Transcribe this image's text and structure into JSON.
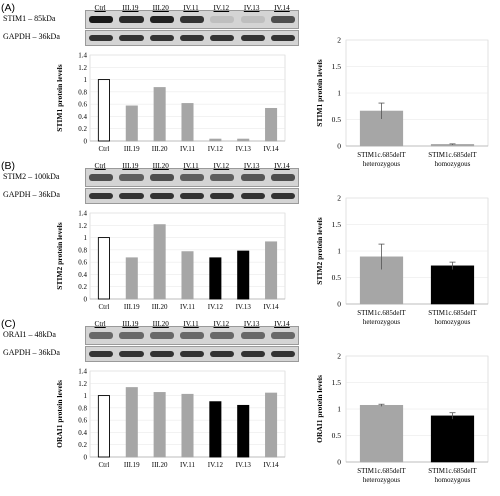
{
  "lanes": [
    "Ctrl",
    "III.19",
    "III.20",
    "IV.11",
    "IV.12",
    "IV.13",
    "IV.14"
  ],
  "group_labels": [
    "STIM1c.685delT\nheterozygous",
    "STIM1c.685delT\nhomozygous"
  ],
  "y_ticks_left": [
    "0",
    "0.2",
    "0.4",
    "0.6",
    "0.8",
    "1",
    "1.2",
    "1.4"
  ],
  "y_ticks_right": [
    "0",
    "0.5",
    "1",
    "1.5",
    "2"
  ],
  "loading_label": "GAPDH – 36kDa",
  "colors": {
    "control": "#ffffff",
    "heterozygous": "#a6a6a6",
    "homozygous": "#000000",
    "stim1_homozygous": "#a6a6a6"
  },
  "panels": [
    {
      "label": "(A)",
      "blot_label": "STIM1 – 85kDa",
      "ylabel": "STIM1 protein levels",
      "band_intensity": [
        1.0,
        0.9,
        0.95,
        0.85,
        0.05,
        0.05,
        0.7
      ]
    },
    {
      "label": "(B)",
      "blot_label": "STIM2 – 100kDa",
      "ylabel": "STIM2 protein levels",
      "band_intensity": [
        0.7,
        0.6,
        0.7,
        0.6,
        0.6,
        0.65,
        0.7
      ]
    },
    {
      "label": "(C)",
      "blot_label": "ORAI1 – 48kDa",
      "ylabel": "ORAI1 protein levels",
      "band_intensity": [
        0.55,
        0.55,
        0.55,
        0.55,
        0.55,
        0.55,
        0.55
      ]
    }
  ],
  "chart_data": [
    {
      "type": "bar",
      "panel": "(A)",
      "ylabel": "STIM1 protein levels",
      "ylim": [
        0,
        1.4
      ],
      "categories": [
        "Ctrl",
        "III.19",
        "III.20",
        "IV.11",
        "IV.12",
        "IV.13",
        "IV.14"
      ],
      "values": [
        1.0,
        0.57,
        0.87,
        0.61,
        0.03,
        0.03,
        0.53
      ],
      "colors": [
        "#ffffff",
        "#a6a6a6",
        "#a6a6a6",
        "#a6a6a6",
        "#a6a6a6",
        "#a6a6a6",
        "#a6a6a6"
      ]
    },
    {
      "type": "bar",
      "panel": "(A)",
      "ylabel": "STIM1 protein levels",
      "ylim": [
        0,
        2
      ],
      "categories": [
        "STIM1c.685delT\nheterozygous",
        "STIM1c.685delT\nhomozygous"
      ],
      "values": [
        0.66,
        0.03
      ],
      "errors": [
        0.15,
        0.01
      ],
      "colors": [
        "#a6a6a6",
        "#a6a6a6"
      ]
    },
    {
      "type": "bar",
      "panel": "(B)",
      "ylabel": "STIM2 protein levels",
      "ylim": [
        0,
        1.4
      ],
      "categories": [
        "Ctrl",
        "III.19",
        "III.20",
        "IV.11",
        "IV.12",
        "IV.13",
        "IV.14"
      ],
      "values": [
        1.0,
        0.67,
        1.21,
        0.77,
        0.67,
        0.78,
        0.93
      ],
      "colors": [
        "#ffffff",
        "#a6a6a6",
        "#a6a6a6",
        "#a6a6a6",
        "#000000",
        "#000000",
        "#a6a6a6"
      ]
    },
    {
      "type": "bar",
      "panel": "(B)",
      "ylabel": "STIM2 protein levels",
      "ylim": [
        0,
        2
      ],
      "categories": [
        "STIM1c.685delT\nheterozygous",
        "STIM1c.685delT\nhomozygous"
      ],
      "values": [
        0.89,
        0.72
      ],
      "errors": [
        0.24,
        0.07
      ],
      "colors": [
        "#a6a6a6",
        "#000000"
      ]
    },
    {
      "type": "bar",
      "panel": "(C)",
      "ylabel": "ORAI1 protein levels",
      "ylim": [
        0,
        1.4
      ],
      "categories": [
        "Ctrl",
        "III.19",
        "III.20",
        "IV.11",
        "IV.12",
        "IV.13",
        "IV.14"
      ],
      "values": [
        1.0,
        1.13,
        1.05,
        1.02,
        0.9,
        0.84,
        1.04
      ],
      "colors": [
        "#ffffff",
        "#a6a6a6",
        "#a6a6a6",
        "#a6a6a6",
        "#000000",
        "#000000",
        "#a6a6a6"
      ]
    },
    {
      "type": "bar",
      "panel": "(C)",
      "ylabel": "ORAI1 protein levels",
      "ylim": [
        0,
        2
      ],
      "categories": [
        "STIM1c.685delT\nheterozygous",
        "STIM1c.685delT\nhomozygous"
      ],
      "values": [
        1.07,
        0.87
      ],
      "errors": [
        0.02,
        0.06
      ],
      "colors": [
        "#a6a6a6",
        "#000000"
      ]
    }
  ]
}
